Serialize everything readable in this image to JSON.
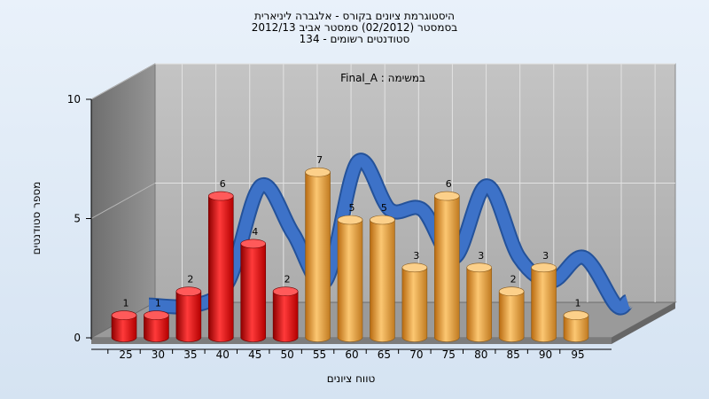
{
  "chart_data": {
    "type": "bar",
    "title_lines": [
      "היסטוגרמת ציונים בקורס - אלגברה ליניארית",
      "בסמסטר  (02/2012)  סמסטר אביב 2012/13",
      "סטודנטים רשומים - 134"
    ],
    "task_label": "במשימה : Final_A",
    "xlabel": "טווח ציונים",
    "ylabel": "מספר סטודנטים",
    "categories": [
      "25",
      "30",
      "35",
      "40",
      "45",
      "50",
      "55",
      "60",
      "65",
      "70",
      "75",
      "80",
      "85",
      "90",
      "95"
    ],
    "values": [
      1,
      1,
      2,
      6,
      4,
      2,
      7,
      5,
      5,
      3,
      6,
      3,
      2,
      3,
      1
    ],
    "ylim": [
      0,
      10
    ],
    "yticks": [
      "0",
      "5",
      "10"
    ],
    "failing_color": "#e01a1a",
    "passing_color": "#f0a444",
    "trend_color": "#3d72c8",
    "failing_threshold": "55",
    "grid": true,
    "style": "3d-cylinder",
    "trend_curve": "smoothed"
  }
}
